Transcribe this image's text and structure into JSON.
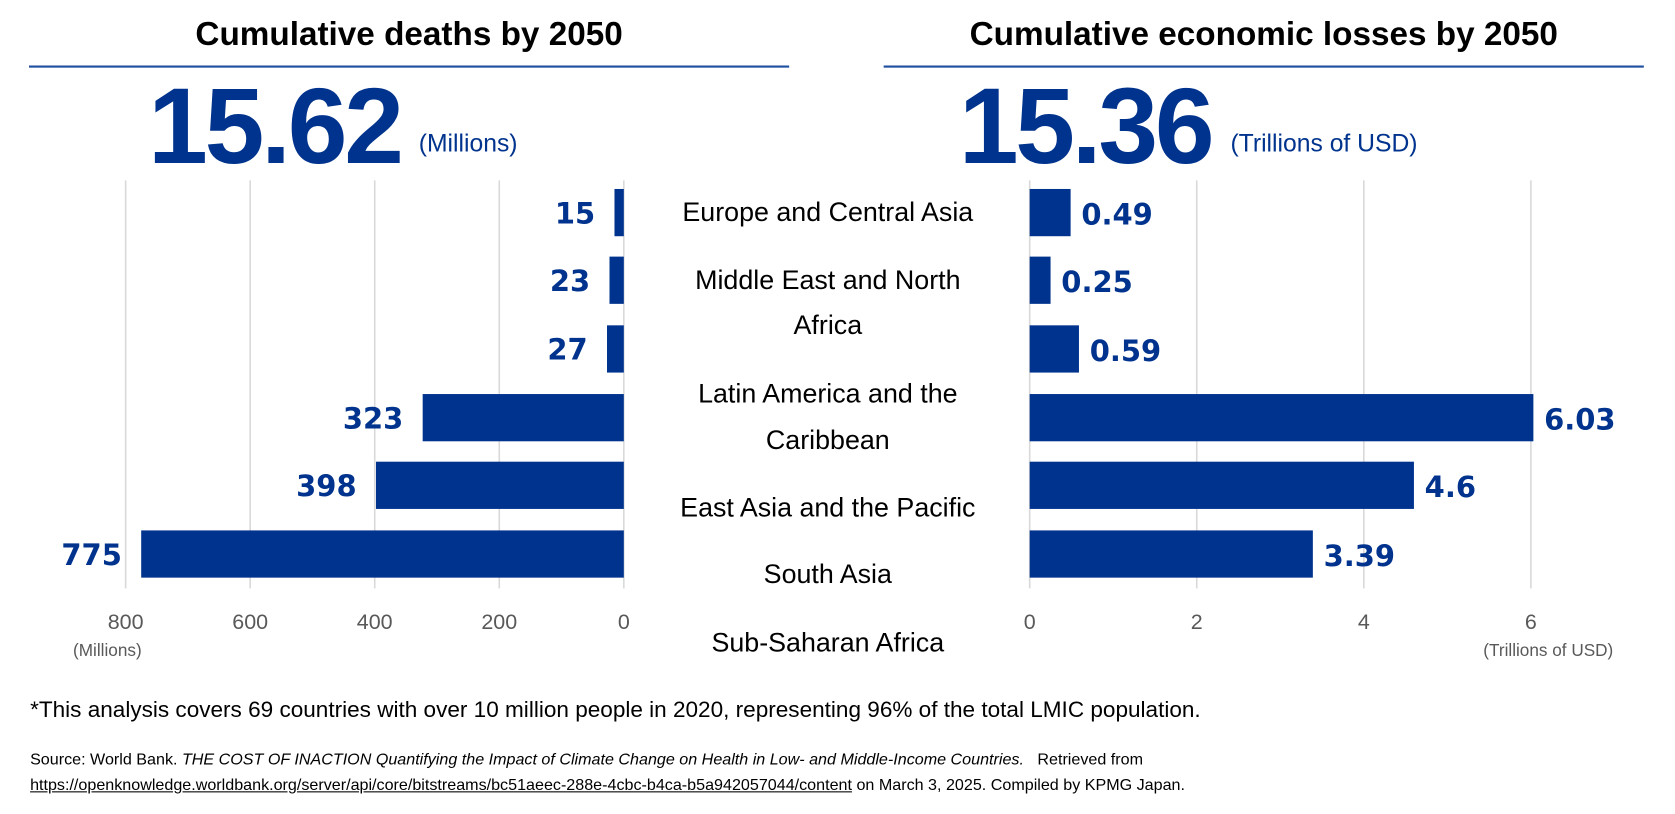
{
  "left_panel": {
    "title": "Cumulative deaths by 2050",
    "total": "15.62",
    "total_unit": "(Millions)"
  },
  "right_panel": {
    "title": "Cumulative economic losses by 2050",
    "total": "15.36",
    "total_unit": "(Trillions of USD)"
  },
  "chart_data": [
    {
      "type": "bar",
      "orientation": "horizontal-reversed",
      "title": "Cumulative deaths by 2050",
      "xlabel": "(Millions)",
      "xlim": [
        0,
        800
      ],
      "ticks": [
        "800",
        "600",
        "400",
        "200",
        "0"
      ],
      "tick_values": [
        800,
        600,
        400,
        200,
        0
      ],
      "values": [
        15,
        23,
        27,
        323,
        398,
        775
      ],
      "data_labels": [
        "15",
        "23",
        "27",
        "323",
        "398",
        "775"
      ],
      "grid": true,
      "color": "#00338d"
    },
    {
      "type": "bar",
      "orientation": "horizontal",
      "title": "Cumulative economic losses by 2050",
      "xlabel": "(Trillions of USD)",
      "xlim": [
        0,
        7
      ],
      "ticks": [
        "0",
        "2",
        "4",
        "6"
      ],
      "tick_values": [
        0,
        2,
        4,
        6
      ],
      "values": [
        0.49,
        0.25,
        0.59,
        6.03,
        4.6,
        3.39
      ],
      "data_labels": [
        "0.49",
        "0.25",
        "0.59",
        "6.03",
        "4.6",
        "3.39"
      ],
      "grid": true,
      "color": "#00338d"
    }
  ],
  "categories": [
    "Europe and Central Asia",
    "Middle East and North Africa",
    "Latin America and the Caribbean",
    "East Asia and the Pacific",
    "South Asia",
    "Sub-Saharan Africa"
  ],
  "footnote": "*This analysis covers 69 countries with over 10 million people in 2020, representing 96% of the total LMIC population.",
  "source": {
    "prefix": "Source: World Bank. ",
    "title": "THE COST OF INACTION Quantifying the Impact of Climate Change on Health in Low- and Middle-Income Countries.",
    "retrieved": "   Retrieved from",
    "url": "https://openknowledge.worldbank.org/server/api/core/bitstreams/bc51aeec-288e-4cbc-b4ca-b5a942057044/content",
    "suffix": " on March 3, 2025. Compiled by KPMG Japan."
  }
}
